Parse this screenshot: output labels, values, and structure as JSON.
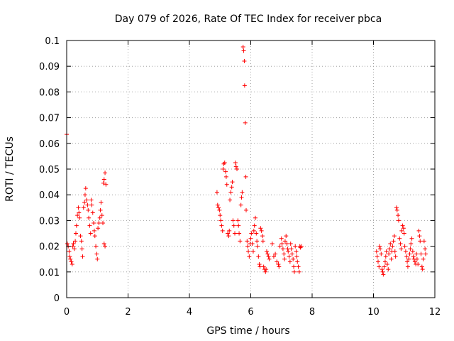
{
  "chart_data": {
    "type": "scatter",
    "title": "Day 079 of 2026, Rate Of TEC Index for receiver pbca",
    "xlabel": "GPS time / hours",
    "ylabel": "ROTI / TECUs",
    "xlim": [
      0,
      12
    ],
    "ylim": [
      0,
      0.1
    ],
    "x_ticks": [
      "0",
      "2",
      "4",
      "6",
      "8",
      "10",
      "12"
    ],
    "y_ticks": [
      "0",
      "0.01",
      "0.02",
      "0.03",
      "0.04",
      "0.05",
      "0.06",
      "0.07",
      "0.08",
      "0.09",
      "0.1"
    ],
    "grid": true,
    "marker": "+",
    "color": "#ff0000",
    "series": [
      {
        "name": "ROTI",
        "points": [
          [
            0.0,
            0.0635
          ],
          [
            0.02,
            0.021
          ],
          [
            0.05,
            0.02
          ],
          [
            0.08,
            0.018
          ],
          [
            0.1,
            0.016
          ],
          [
            0.12,
            0.015
          ],
          [
            0.15,
            0.014
          ],
          [
            0.18,
            0.013
          ],
          [
            0.2,
            0.02
          ],
          [
            0.22,
            0.021
          ],
          [
            0.25,
            0.019
          ],
          [
            0.28,
            0.022
          ],
          [
            0.3,
            0.025
          ],
          [
            0.32,
            0.028
          ],
          [
            0.35,
            0.032
          ],
          [
            0.38,
            0.035
          ],
          [
            0.4,
            0.033
          ],
          [
            0.42,
            0.031
          ],
          [
            0.45,
            0.024
          ],
          [
            0.48,
            0.022
          ],
          [
            0.5,
            0.019
          ],
          [
            0.52,
            0.016
          ],
          [
            0.55,
            0.035
          ],
          [
            0.58,
            0.037
          ],
          [
            0.6,
            0.04
          ],
          [
            0.62,
            0.0425
          ],
          [
            0.65,
            0.038
          ],
          [
            0.68,
            0.036
          ],
          [
            0.7,
            0.034
          ],
          [
            0.72,
            0.031
          ],
          [
            0.75,
            0.028
          ],
          [
            0.78,
            0.025
          ],
          [
            0.8,
            0.038
          ],
          [
            0.82,
            0.036
          ],
          [
            0.85,
            0.033
          ],
          [
            0.88,
            0.029
          ],
          [
            0.9,
            0.026
          ],
          [
            0.92,
            0.024
          ],
          [
            0.95,
            0.02
          ],
          [
            0.98,
            0.017
          ],
          [
            1.0,
            0.015
          ],
          [
            1.02,
            0.027
          ],
          [
            1.05,
            0.029
          ],
          [
            1.08,
            0.031
          ],
          [
            1.1,
            0.034
          ],
          [
            1.12,
            0.037
          ],
          [
            1.15,
            0.032
          ],
          [
            1.18,
            0.029
          ],
          [
            1.2,
            0.0445
          ],
          [
            1.22,
            0.046
          ],
          [
            1.25,
            0.0485
          ],
          [
            1.28,
            0.044
          ],
          [
            1.22,
            0.021
          ],
          [
            1.25,
            0.02
          ],
          [
            4.9,
            0.041
          ],
          [
            4.92,
            0.036
          ],
          [
            4.95,
            0.035
          ],
          [
            4.98,
            0.034
          ],
          [
            5.0,
            0.032
          ],
          [
            5.02,
            0.03
          ],
          [
            5.05,
            0.028
          ],
          [
            5.08,
            0.026
          ],
          [
            5.1,
            0.05
          ],
          [
            5.12,
            0.052
          ],
          [
            5.15,
            0.0525
          ],
          [
            5.18,
            0.049
          ],
          [
            5.2,
            0.047
          ],
          [
            5.22,
            0.044
          ],
          [
            5.25,
            0.025
          ],
          [
            5.28,
            0.024
          ],
          [
            5.3,
            0.026
          ],
          [
            5.32,
            0.038
          ],
          [
            5.35,
            0.041
          ],
          [
            5.38,
            0.043
          ],
          [
            5.4,
            0.045
          ],
          [
            5.42,
            0.03
          ],
          [
            5.45,
            0.028
          ],
          [
            5.48,
            0.025
          ],
          [
            5.5,
            0.0525
          ],
          [
            5.52,
            0.051
          ],
          [
            5.55,
            0.05
          ],
          [
            5.58,
            0.03
          ],
          [
            5.6,
            0.028
          ],
          [
            5.62,
            0.025
          ],
          [
            5.65,
            0.022
          ],
          [
            5.68,
            0.036
          ],
          [
            5.7,
            0.039
          ],
          [
            5.72,
            0.041
          ],
          [
            5.75,
            0.0975
          ],
          [
            5.77,
            0.096
          ],
          [
            5.79,
            0.092
          ],
          [
            5.8,
            0.0825
          ],
          [
            5.82,
            0.068
          ],
          [
            5.84,
            0.047
          ],
          [
            5.85,
            0.034
          ],
          [
            5.88,
            0.022
          ],
          [
            5.9,
            0.02
          ],
          [
            5.92,
            0.018
          ],
          [
            5.95,
            0.016
          ],
          [
            5.98,
            0.021
          ],
          [
            6.0,
            0.023
          ],
          [
            6.02,
            0.025
          ],
          [
            6.05,
            0.021
          ],
          [
            6.08,
            0.018
          ],
          [
            6.1,
            0.026
          ],
          [
            6.12,
            0.028
          ],
          [
            6.15,
            0.031
          ],
          [
            6.18,
            0.025
          ],
          [
            6.2,
            0.022
          ],
          [
            6.22,
            0.02
          ],
          [
            6.25,
            0.016
          ],
          [
            6.28,
            0.013
          ],
          [
            6.3,
            0.012
          ],
          [
            6.32,
            0.027
          ],
          [
            6.35,
            0.026
          ],
          [
            6.38,
            0.024
          ],
          [
            6.4,
            0.022
          ],
          [
            6.42,
            0.012
          ],
          [
            6.45,
            0.011
          ],
          [
            6.48,
            0.01
          ],
          [
            6.5,
            0.011
          ],
          [
            6.52,
            0.018
          ],
          [
            6.55,
            0.017
          ],
          [
            6.58,
            0.016
          ],
          [
            6.6,
            0.015
          ],
          [
            6.7,
            0.021
          ],
          [
            6.75,
            0.016
          ],
          [
            6.8,
            0.017
          ],
          [
            6.85,
            0.014
          ],
          [
            6.9,
            0.013
          ],
          [
            6.92,
            0.012
          ],
          [
            6.95,
            0.02
          ],
          [
            7.0,
            0.023
          ],
          [
            7.02,
            0.021
          ],
          [
            7.05,
            0.019
          ],
          [
            7.08,
            0.017
          ],
          [
            7.1,
            0.015
          ],
          [
            7.12,
            0.022
          ],
          [
            7.15,
            0.024
          ],
          [
            7.18,
            0.021
          ],
          [
            7.2,
            0.019
          ],
          [
            7.22,
            0.018
          ],
          [
            7.25,
            0.016
          ],
          [
            7.28,
            0.014
          ],
          [
            7.3,
            0.021
          ],
          [
            7.32,
            0.019
          ],
          [
            7.35,
            0.017
          ],
          [
            7.38,
            0.015
          ],
          [
            7.4,
            0.012
          ],
          [
            7.42,
            0.01
          ],
          [
            7.45,
            0.02
          ],
          [
            7.48,
            0.018
          ],
          [
            7.5,
            0.016
          ],
          [
            7.52,
            0.014
          ],
          [
            7.55,
            0.012
          ],
          [
            7.58,
            0.01
          ],
          [
            7.6,
            0.02
          ],
          [
            7.62,
            0.0195
          ],
          [
            7.65,
            0.02
          ],
          [
            10.1,
            0.018
          ],
          [
            10.12,
            0.016
          ],
          [
            10.15,
            0.014
          ],
          [
            10.18,
            0.012
          ],
          [
            10.2,
            0.02
          ],
          [
            10.22,
            0.019
          ],
          [
            10.25,
            0.017
          ],
          [
            10.28,
            0.011
          ],
          [
            10.3,
            0.01
          ],
          [
            10.32,
            0.009
          ],
          [
            10.35,
            0.012
          ],
          [
            10.38,
            0.014
          ],
          [
            10.4,
            0.016
          ],
          [
            10.42,
            0.018
          ],
          [
            10.45,
            0.013
          ],
          [
            10.48,
            0.011
          ],
          [
            10.5,
            0.017
          ],
          [
            10.52,
            0.019
          ],
          [
            10.55,
            0.021
          ],
          [
            10.58,
            0.015
          ],
          [
            10.6,
            0.018
          ],
          [
            10.62,
            0.02
          ],
          [
            10.65,
            0.022
          ],
          [
            10.68,
            0.024
          ],
          [
            10.7,
            0.018
          ],
          [
            10.72,
            0.016
          ],
          [
            10.75,
            0.035
          ],
          [
            10.77,
            0.034
          ],
          [
            10.8,
            0.032
          ],
          [
            10.82,
            0.03
          ],
          [
            10.85,
            0.023
          ],
          [
            10.88,
            0.021
          ],
          [
            10.9,
            0.019
          ],
          [
            10.92,
            0.026
          ],
          [
            10.95,
            0.028
          ],
          [
            10.98,
            0.027
          ],
          [
            11.0,
            0.025
          ],
          [
            11.02,
            0.02
          ],
          [
            11.05,
            0.018
          ],
          [
            11.08,
            0.016
          ],
          [
            11.1,
            0.014
          ],
          [
            11.12,
            0.012
          ],
          [
            11.15,
            0.015
          ],
          [
            11.18,
            0.017
          ],
          [
            11.2,
            0.019
          ],
          [
            11.22,
            0.021
          ],
          [
            11.25,
            0.023
          ],
          [
            11.28,
            0.018
          ],
          [
            11.3,
            0.016
          ],
          [
            11.32,
            0.015
          ],
          [
            11.35,
            0.014
          ],
          [
            11.38,
            0.013
          ],
          [
            11.4,
            0.017
          ],
          [
            11.42,
            0.015
          ],
          [
            11.45,
            0.013
          ],
          [
            11.48,
            0.026
          ],
          [
            11.5,
            0.024
          ],
          [
            11.52,
            0.022
          ],
          [
            11.55,
            0.017
          ],
          [
            11.58,
            0.012
          ],
          [
            11.6,
            0.011
          ],
          [
            11.62,
            0.015
          ],
          [
            11.65,
            0.022
          ],
          [
            11.68,
            0.019
          ],
          [
            11.7,
            0.017
          ]
        ]
      }
    ]
  }
}
